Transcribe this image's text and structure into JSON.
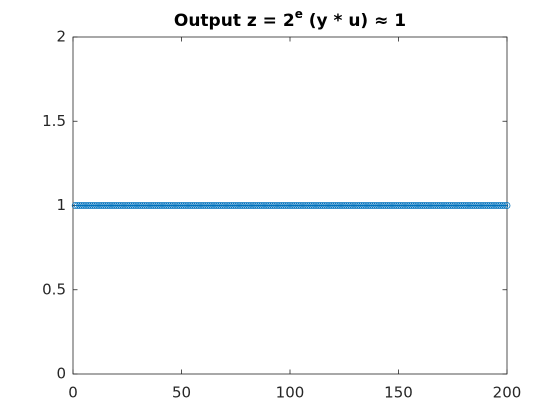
{
  "chart_data": {
    "type": "line",
    "title": [
      "Output z = 2",
      "e",
      " (y * u) ≈ 1"
    ],
    "x": [
      1,
      2,
      3,
      4,
      5,
      6,
      7,
      8,
      9,
      10,
      11,
      12,
      13,
      14,
      15,
      16,
      17,
      18,
      19,
      20,
      21,
      22,
      23,
      24,
      25,
      26,
      27,
      28,
      29,
      30,
      31,
      32,
      33,
      34,
      35,
      36,
      37,
      38,
      39,
      40,
      41,
      42,
      43,
      44,
      45,
      46,
      47,
      48,
      49,
      50,
      51,
      52,
      53,
      54,
      55,
      56,
      57,
      58,
      59,
      60,
      61,
      62,
      63,
      64,
      65,
      66,
      67,
      68,
      69,
      70,
      71,
      72,
      73,
      74,
      75,
      76,
      77,
      78,
      79,
      80,
      81,
      82,
      83,
      84,
      85,
      86,
      87,
      88,
      89,
      90,
      91,
      92,
      93,
      94,
      95,
      96,
      97,
      98,
      99,
      100,
      101,
      102,
      103,
      104,
      105,
      106,
      107,
      108,
      109,
      110,
      111,
      112,
      113,
      114,
      115,
      116,
      117,
      118,
      119,
      120,
      121,
      122,
      123,
      124,
      125,
      126,
      127,
      128,
      129,
      130,
      131,
      132,
      133,
      134,
      135,
      136,
      137,
      138,
      139,
      140,
      141,
      142,
      143,
      144,
      145,
      146,
      147,
      148,
      149,
      150,
      151,
      152,
      153,
      154,
      155,
      156,
      157,
      158,
      159,
      160,
      161,
      162,
      163,
      164,
      165,
      166,
      167,
      168,
      169,
      170,
      171,
      172,
      173,
      174,
      175,
      176,
      177,
      178,
      179,
      180,
      181,
      182,
      183,
      184,
      185,
      186,
      187,
      188,
      189,
      190,
      191,
      192,
      193,
      194,
      195,
      196,
      197,
      198,
      199,
      200
    ],
    "series": [
      {
        "color": "#0072bd",
        "marker": "circle",
        "values": [
          1,
          1,
          1,
          1,
          1,
          1,
          1,
          1,
          1,
          1,
          1,
          1,
          1,
          1,
          1,
          1,
          1,
          1,
          1,
          1,
          1,
          1,
          1,
          1,
          1,
          1,
          1,
          1,
          1,
          1,
          1,
          1,
          1,
          1,
          1,
          1,
          1,
          1,
          1,
          1,
          1,
          1,
          1,
          1,
          1,
          1,
          1,
          1,
          1,
          1,
          1,
          1,
          1,
          1,
          1,
          1,
          1,
          1,
          1,
          1,
          1,
          1,
          1,
          1,
          1,
          1,
          1,
          1,
          1,
          1,
          1,
          1,
          1,
          1,
          1,
          1,
          1,
          1,
          1,
          1,
          1,
          1,
          1,
          1,
          1,
          1,
          1,
          1,
          1,
          1,
          1,
          1,
          1,
          1,
          1,
          1,
          1,
          1,
          1,
          1,
          1,
          1,
          1,
          1,
          1,
          1,
          1,
          1,
          1,
          1,
          1,
          1,
          1,
          1,
          1,
          1,
          1,
          1,
          1,
          1,
          1,
          1,
          1,
          1,
          1,
          1,
          1,
          1,
          1,
          1,
          1,
          1,
          1,
          1,
          1,
          1,
          1,
          1,
          1,
          1,
          1,
          1,
          1,
          1,
          1,
          1,
          1,
          1,
          1,
          1,
          1,
          1,
          1,
          1,
          1,
          1,
          1,
          1,
          1,
          1,
          1,
          1,
          1,
          1,
          1,
          1,
          1,
          1,
          1,
          1,
          1,
          1,
          1,
          1,
          1,
          1,
          1,
          1,
          1,
          1,
          1,
          1,
          1,
          1,
          1,
          1,
          1,
          1,
          1,
          1,
          1,
          1,
          1,
          1,
          1,
          1,
          1,
          1,
          1,
          1
        ]
      }
    ],
    "xlim": [
      0,
      200
    ],
    "xticks": [
      0,
      50,
      100,
      150,
      200
    ],
    "ylim": [
      0,
      2
    ],
    "yticks": [
      0,
      0.5,
      1,
      1.5,
      2
    ],
    "grid": false
  }
}
